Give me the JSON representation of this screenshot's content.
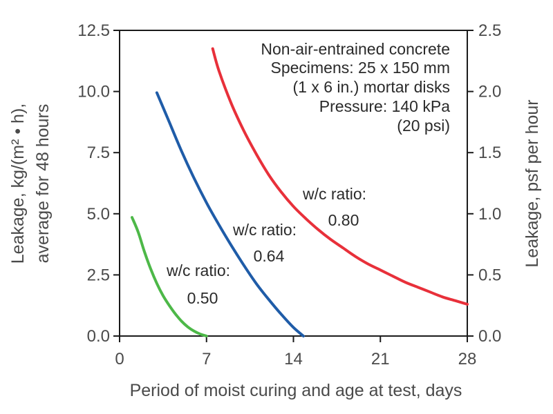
{
  "chart_data": {
    "type": "line",
    "xlabel": "Period of moist curing and age at test, days",
    "ylabel_left_line1": "Leakage, kg/(m² • h),",
    "ylabel_left_line2": "average for 48 hours",
    "ylabel_right": "Leakage, psf per hour",
    "xlim": [
      0,
      28
    ],
    "ylim": [
      0,
      12.5
    ],
    "ylim_right": [
      0,
      2.5
    ],
    "x_ticks": [
      "0",
      "7",
      "14",
      "21",
      "28"
    ],
    "y_ticks_left": [
      "0.0",
      "2.5",
      "5.0",
      "7.5",
      "10.0",
      "12.5"
    ],
    "y_ticks_right": [
      "0.0",
      "0.5",
      "1.0",
      "1.5",
      "2.0",
      "2.5"
    ],
    "grid": false,
    "annotation": [
      "Non-air-entrained concrete",
      "Specimens: 25 x 150 mm",
      "(1 x 6 in.) mortar disks",
      "Pressure: 140 kPa",
      "(20 psi)"
    ],
    "series": [
      {
        "label_line1": "w/c ratio:",
        "label_line2": "0.50",
        "color": "#4db848",
        "x": [
          1.0,
          1.5,
          2.0,
          2.5,
          3.0,
          3.5,
          4.0,
          4.5,
          5.0,
          5.5,
          6.0,
          6.5,
          7.0
        ],
        "y": [
          4.85,
          4.25,
          3.45,
          2.75,
          2.15,
          1.65,
          1.25,
          0.9,
          0.6,
          0.37,
          0.2,
          0.08,
          0.0
        ]
      },
      {
        "label_line1": "w/c ratio:",
        "label_line2": "0.64",
        "color": "#1f5ca8",
        "x": [
          3.0,
          4.0,
          5.0,
          6.0,
          7.0,
          8.0,
          9.0,
          10.0,
          11.0,
          12.0,
          13.0,
          14.0,
          14.8
        ],
        "y": [
          9.95,
          8.75,
          7.55,
          6.45,
          5.45,
          4.55,
          3.7,
          2.9,
          2.15,
          1.5,
          0.9,
          0.35,
          0.0
        ]
      },
      {
        "label_line1": "w/c ratio:",
        "label_line2": "0.80",
        "color": "#e8303a",
        "x": [
          7.5,
          8.0,
          9.0,
          10.0,
          11.0,
          12.0,
          13.0,
          14.0,
          15.0,
          16.0,
          17.0,
          18.0,
          19.0,
          20.0,
          21.0,
          22.0,
          23.0,
          24.0,
          25.0,
          26.0,
          27.0,
          28.0
        ],
        "y": [
          11.75,
          10.85,
          9.5,
          8.4,
          7.45,
          6.6,
          5.9,
          5.3,
          4.8,
          4.35,
          3.95,
          3.6,
          3.25,
          2.95,
          2.7,
          2.45,
          2.2,
          2.0,
          1.8,
          1.6,
          1.45,
          1.3
        ]
      }
    ]
  }
}
